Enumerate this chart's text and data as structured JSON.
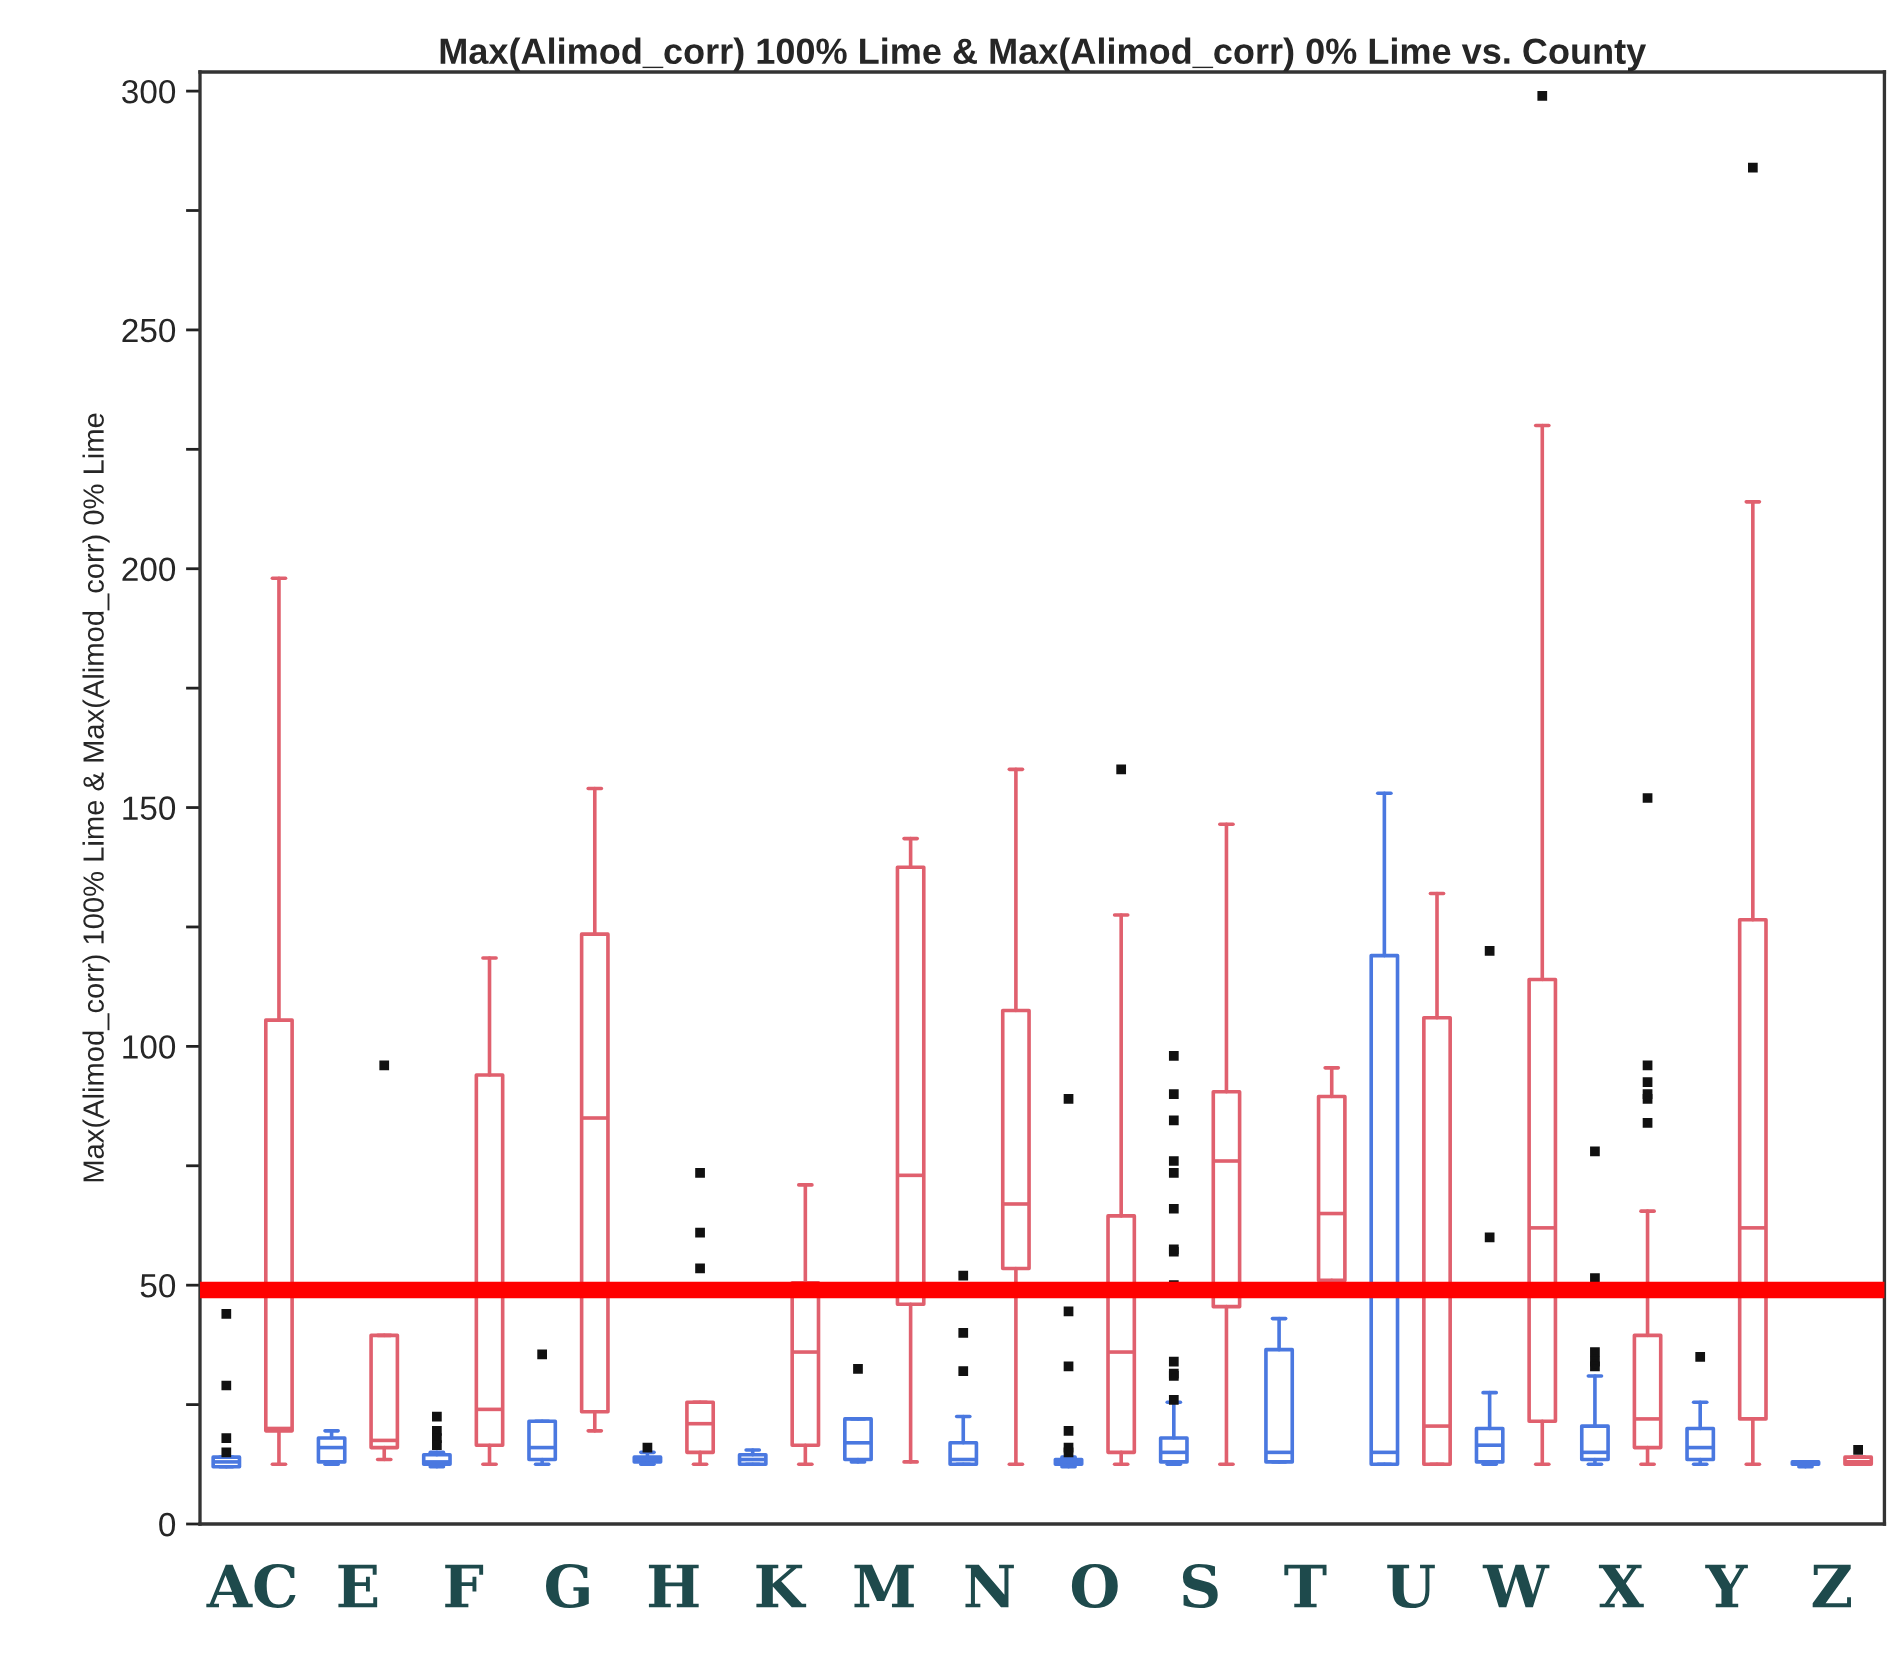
{
  "chart_data": {
    "type": "box",
    "title": "Max(Alimod_corr) 100% Lime & Max(Alimod_corr) 0% Lime vs. County",
    "ylabel": "Max(Alimod_corr) 100% Lime & Max(Alimod_corr) 0% Lime",
    "categories": [
      "AC",
      "E",
      "F",
      "G",
      "H",
      "K",
      "M",
      "N",
      "O",
      "S",
      "T",
      "U",
      "W",
      "X",
      "Y",
      "Z"
    ],
    "ylim": [
      0,
      304
    ],
    "yticks": [
      0,
      {
        "value": 25,
        "label": null
      },
      50,
      {
        "value": 75,
        "label": null
      },
      100,
      {
        "value": 125,
        "label": null
      },
      150,
      {
        "value": 175,
        "label": null
      },
      200,
      {
        "value": 225,
        "label": null
      },
      250,
      {
        "value": 275,
        "label": null
      },
      300
    ],
    "grid": false,
    "legend": false,
    "series": [
      {
        "color": "#4a78e0",
        "boxes": [
          {
            "low": 12,
            "q1": 12,
            "median": 13,
            "q3": 14,
            "high": 14,
            "outliers": [
              44,
              29,
              18,
              15
            ]
          },
          {
            "low": 12.5,
            "q1": 13,
            "median": 16,
            "q3": 18,
            "high": 19.5
          },
          {
            "low": 12,
            "q1": 12.5,
            "median": 13,
            "q3": 14.5,
            "high": 15,
            "outliers": [
              22.5,
              19.5,
              18,
              16.5
            ]
          },
          {
            "low": 12.5,
            "q1": 13.5,
            "median": 16,
            "q3": 21.5,
            "high": 21.5,
            "outliers": [
              35.5
            ]
          },
          {
            "low": 12.5,
            "q1": 13,
            "median": 13.5,
            "q3": 14,
            "high": 15,
            "outliers": [
              16
            ]
          },
          {
            "low": 12.5,
            "q1": 12.5,
            "median": 13.5,
            "q3": 14.5,
            "high": 15.5
          },
          {
            "low": 13,
            "q1": 13.5,
            "median": 17,
            "q3": 22,
            "high": 22,
            "outliers": [
              32.5
            ]
          },
          {
            "low": 12.5,
            "q1": 12.5,
            "median": 13.5,
            "q3": 17,
            "high": 22.5,
            "outliers": [
              52,
              40,
              32
            ]
          },
          {
            "low": 12,
            "q1": 12.5,
            "median": 13,
            "q3": 13.5,
            "high": 14,
            "outliers": [
              89,
              44.5,
              33,
              19.5,
              16,
              15
            ]
          },
          {
            "low": 12.5,
            "q1": 13,
            "median": 15,
            "q3": 18,
            "high": 25.5,
            "outliers": [
              98,
              90,
              84.5,
              76,
              73.5,
              66,
              57.5,
              57,
              50,
              34,
              31.5,
              31,
              26
            ]
          },
          {
            "low": 13,
            "q1": 13,
            "median": 15,
            "q3": 36.5,
            "high": 43
          },
          {
            "low": 12.5,
            "q1": 12.5,
            "median": 15,
            "q3": 119,
            "high": 153
          },
          {
            "low": 12.5,
            "q1": 13,
            "median": 16.5,
            "q3": 20,
            "high": 27.5,
            "outliers": [
              120,
              60
            ]
          },
          {
            "low": 12.5,
            "q1": 13.5,
            "median": 15,
            "q3": 20.5,
            "high": 31,
            "outliers": [
              78,
              51.5,
              36,
              34,
              33
            ]
          },
          {
            "low": 12.5,
            "q1": 13.5,
            "median": 16,
            "q3": 20,
            "high": 25.5,
            "outliers": [
              35
            ]
          },
          {
            "low": 12,
            "q1": 12.5,
            "median": 12.5,
            "q3": 13,
            "high": 13
          }
        ]
      },
      {
        "color": "#e0606e",
        "boxes": [
          {
            "low": 12.5,
            "q1": 19.5,
            "median": 20,
            "q3": 105.5,
            "high": 198
          },
          {
            "low": 13.5,
            "q1": 16,
            "median": 17.5,
            "q3": 39.5,
            "high": 39.5,
            "outliers": [
              96
            ]
          },
          {
            "low": 12.5,
            "q1": 16.5,
            "median": 24,
            "q3": 94,
            "high": 118.5
          },
          {
            "low": 19.5,
            "q1": 23.5,
            "median": 85,
            "q3": 123.5,
            "high": 154
          },
          {
            "low": 12.5,
            "q1": 15,
            "median": 21,
            "q3": 25.5,
            "high": 25.5,
            "outliers": [
              73.5,
              61,
              53.5
            ]
          },
          {
            "low": 12.5,
            "q1": 16.5,
            "median": 36,
            "q3": 50.5,
            "high": 71
          },
          {
            "low": 13,
            "q1": 46,
            "median": 73,
            "q3": 137.5,
            "high": 143.5
          },
          {
            "low": 12.5,
            "q1": 53.5,
            "median": 67,
            "q3": 107.5,
            "high": 158
          },
          {
            "low": 12.5,
            "q1": 15,
            "median": 36,
            "q3": 64.5,
            "high": 127.5,
            "outliers": [
              158
            ]
          },
          {
            "low": 12.5,
            "q1": 45.5,
            "median": 76,
            "q3": 90.5,
            "high": 146.5
          },
          {
            "low": 50.5,
            "q1": 51,
            "median": 65,
            "q3": 89.5,
            "high": 95.5
          },
          {
            "low": 12.5,
            "q1": 12.5,
            "median": 20.5,
            "q3": 106,
            "high": 132
          },
          {
            "low": 12.5,
            "q1": 21.5,
            "median": 62,
            "q3": 114,
            "high": 230,
            "outliers": [
              299
            ]
          },
          {
            "low": 12.5,
            "q1": 16,
            "median": 22,
            "q3": 39.5,
            "high": 65.5,
            "outliers": [
              152,
              96,
              92.5,
              90,
              89,
              84
            ]
          },
          {
            "low": 12.5,
            "q1": 22,
            "median": 62,
            "q3": 126.5,
            "high": 214,
            "outliers": [
              284
            ]
          },
          {
            "low": 12.5,
            "q1": 12.5,
            "median": 13,
            "q3": 14,
            "high": 14,
            "outliers": [
              15.5
            ]
          }
        ]
      }
    ],
    "ref_lines": [
      {
        "axis": "y",
        "value": 49,
        "color": "#ff0000"
      }
    ]
  }
}
